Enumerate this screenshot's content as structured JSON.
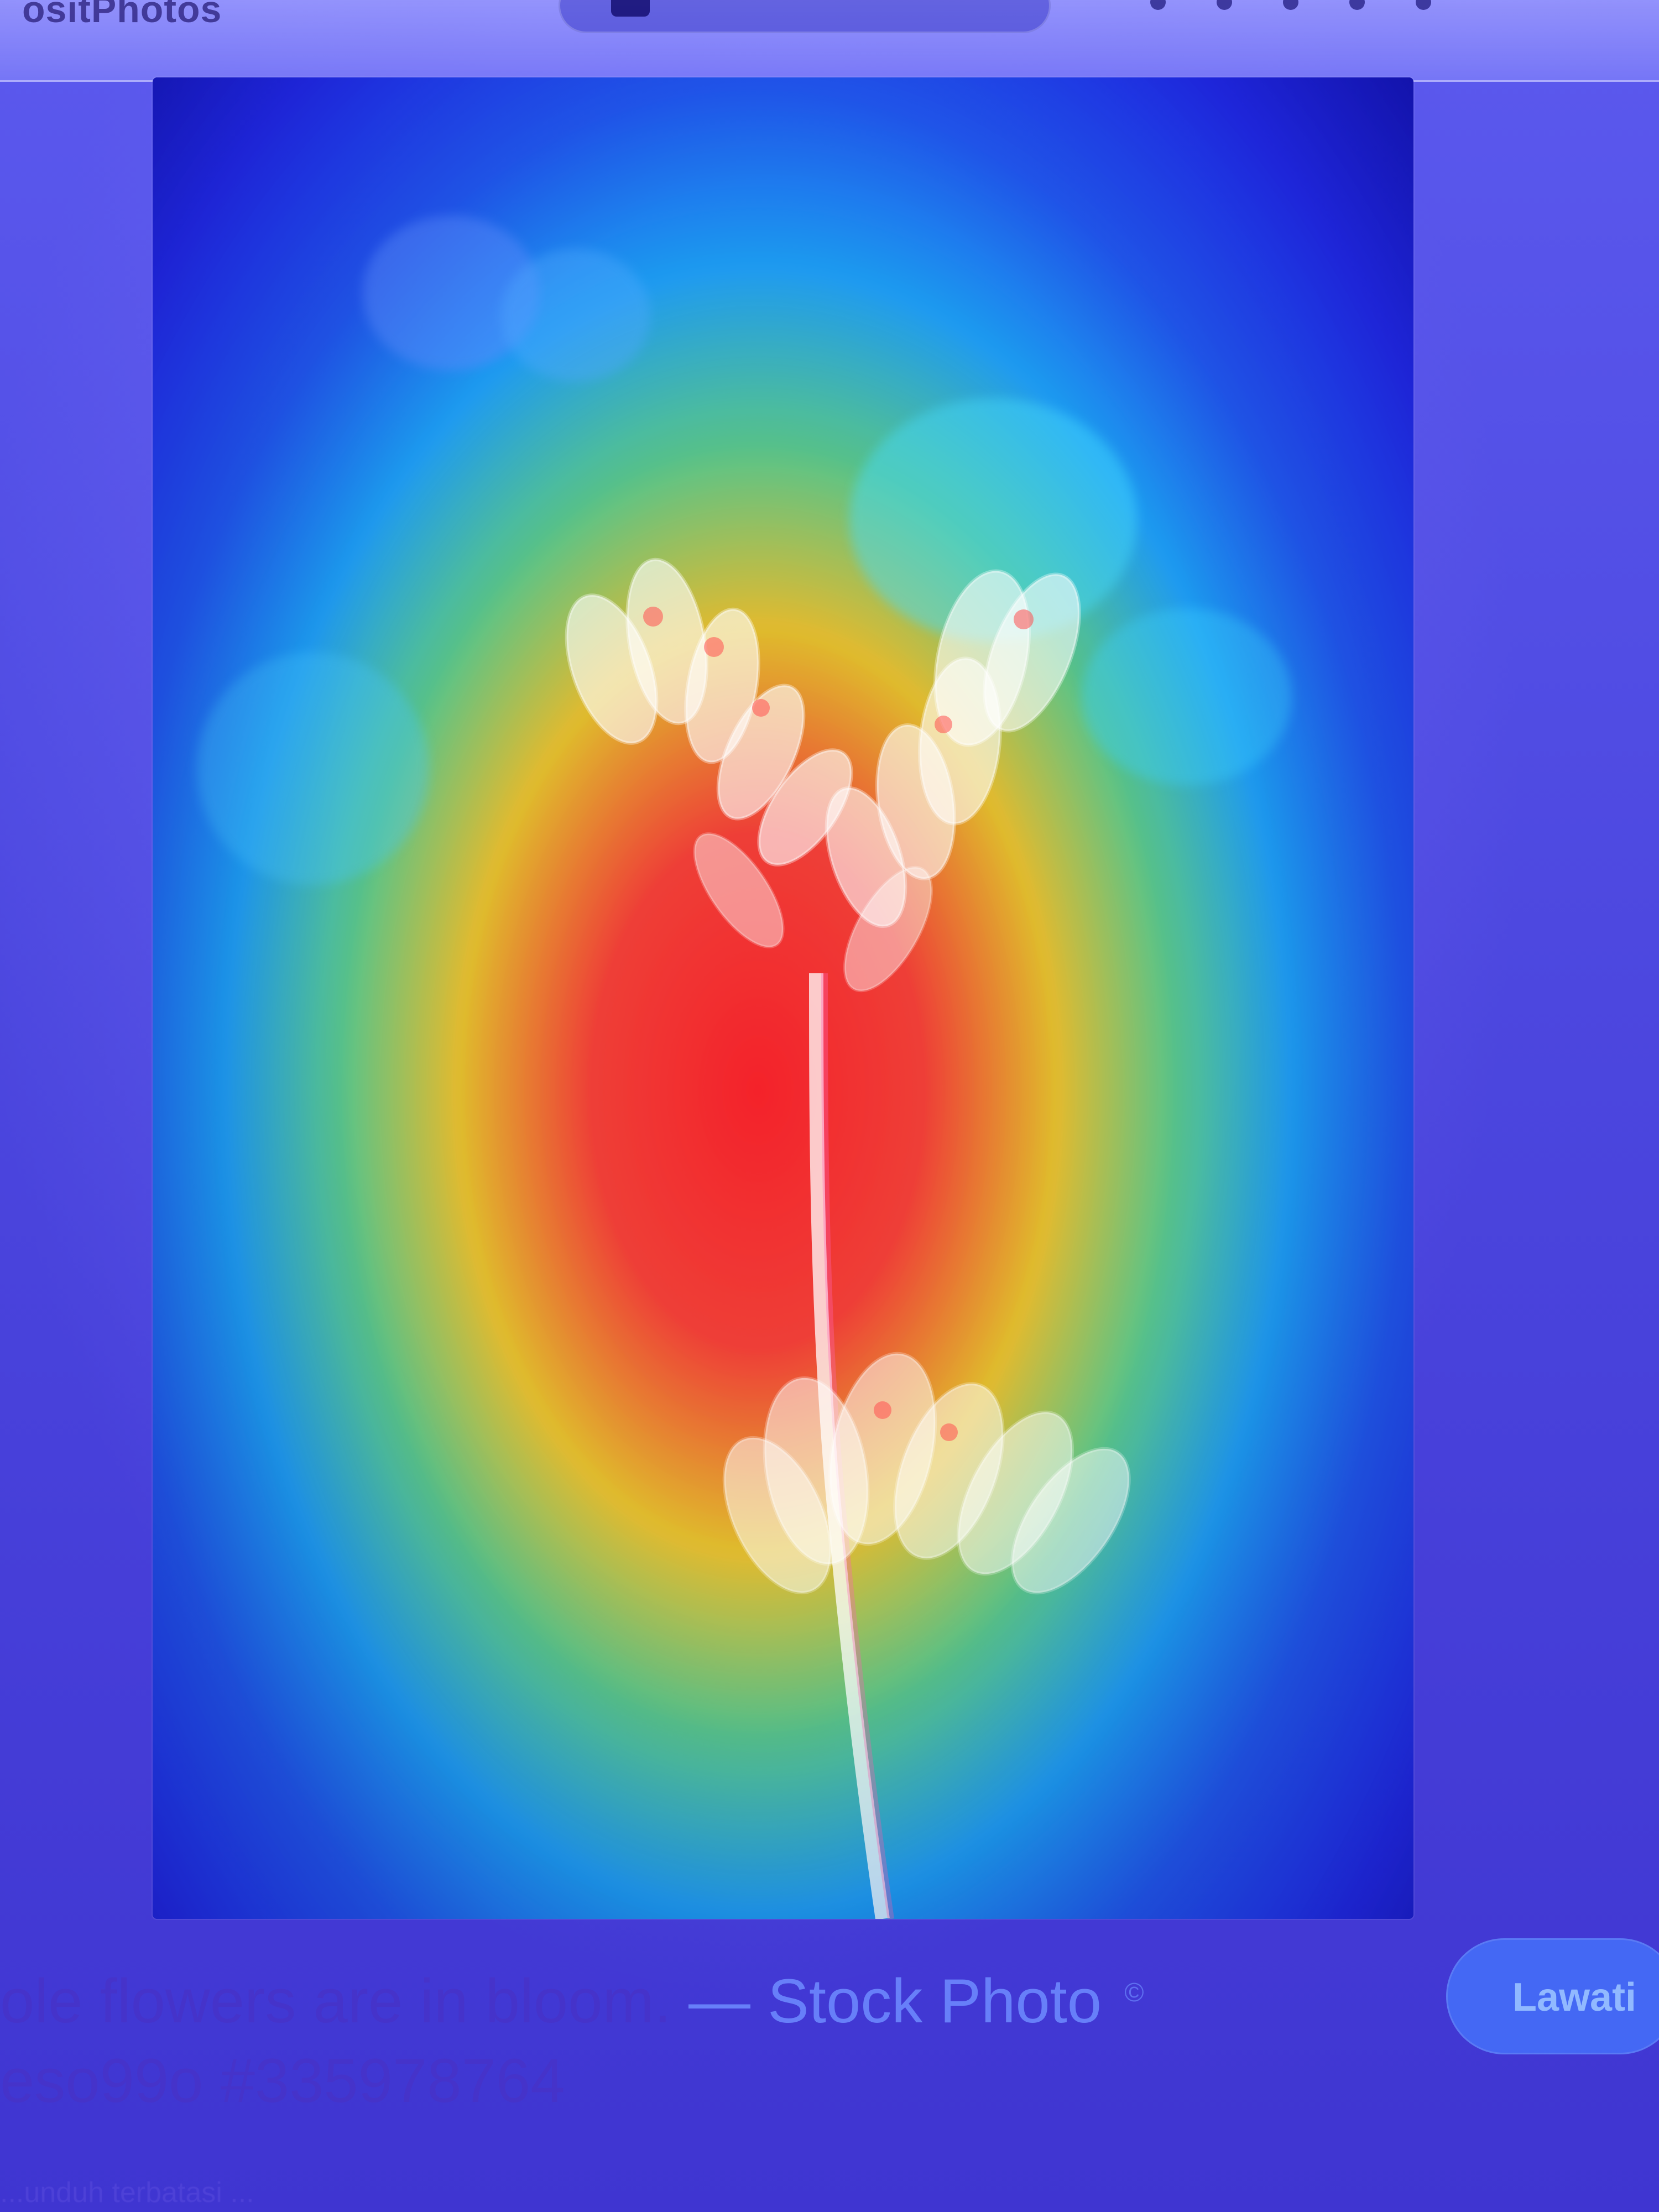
{
  "top": {
    "brand_text": "ositPhotos",
    "pill_icon": "media-icon"
  },
  "image": {
    "alt": "Heatmap overlay on a photo of white flowers"
  },
  "caption": {
    "line1_prefix": "ole flowers are in bloom.",
    "line1_suffix": " — Stock Photo",
    "line1_mark": "©",
    "line2": "eso99o #335978764"
  },
  "cta": {
    "label": "Lawati"
  },
  "footer_faint": "...unduh terbatasi ..."
}
